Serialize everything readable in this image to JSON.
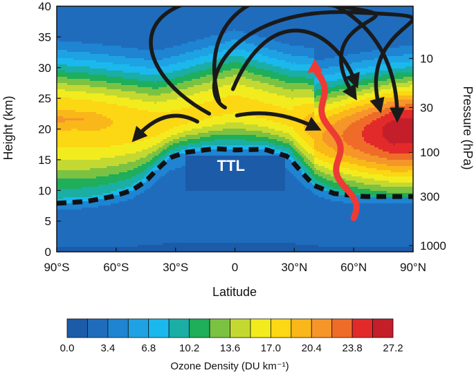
{
  "chart_data": {
    "type": "heatmap",
    "title": "",
    "xlabel": "Latitude",
    "ylabel": "Height (km)",
    "y2label": "Pressure (hPa)",
    "xlim": [
      -90,
      90
    ],
    "ylim": [
      0,
      40
    ],
    "x_ticks": [
      {
        "value": -90,
        "label": "90°S"
      },
      {
        "value": -60,
        "label": "60°S"
      },
      {
        "value": -30,
        "label": "30°S"
      },
      {
        "value": 0,
        "label": "0"
      },
      {
        "value": 30,
        "label": "30°N"
      },
      {
        "value": 60,
        "label": "60°N"
      },
      {
        "value": 90,
        "label": "90°N"
      }
    ],
    "y_ticks": [
      {
        "value": 0,
        "label": "0"
      },
      {
        "value": 5,
        "label": "5"
      },
      {
        "value": 10,
        "label": "10"
      },
      {
        "value": 15,
        "label": "15"
      },
      {
        "value": 20,
        "label": "20"
      },
      {
        "value": 25,
        "label": "25"
      },
      {
        "value": 30,
        "label": "30"
      },
      {
        "value": 35,
        "label": "35"
      },
      {
        "value": 40,
        "label": "40"
      }
    ],
    "y2_ticks": [
      {
        "height_km": 1.0,
        "label": "1000"
      },
      {
        "height_km": 9.0,
        "label": "300"
      },
      {
        "height_km": 16.2,
        "label": "100"
      },
      {
        "height_km": 23.5,
        "label": "30"
      },
      {
        "height_km": 31.5,
        "label": "10"
      }
    ],
    "colorbar": {
      "label": "Ozone Density (DU km⁻¹)",
      "min": 0.0,
      "max": 27.2,
      "step": 1.7,
      "tick_labels": [
        "0.0",
        "3.4",
        "6.8",
        "10.2",
        "13.6",
        "17.0",
        "20.4",
        "23.8",
        "27.2"
      ],
      "colors": [
        "#1c5ba8",
        "#1f6cbd",
        "#1f84d1",
        "#1fa2e3",
        "#1bb8ed",
        "#1aaea5",
        "#1fae59",
        "#7cc242",
        "#c3d931",
        "#f2ec1f",
        "#fcd713",
        "#f9b71a",
        "#f5952a",
        "#ee6c27",
        "#e32a2a",
        "#c41e2b"
      ]
    },
    "annotation": "TTL",
    "tropopause_km": [
      {
        "lat": -90,
        "z": 7.9
      },
      {
        "lat": -75,
        "z": 8.2
      },
      {
        "lat": -62,
        "z": 9.0
      },
      {
        "lat": -52,
        "z": 10.0
      },
      {
        "lat": -45,
        "z": 11.5
      },
      {
        "lat": -40,
        "z": 13.2
      },
      {
        "lat": -33,
        "z": 15.3
      },
      {
        "lat": -25,
        "z": 16.2
      },
      {
        "lat": -10,
        "z": 16.8
      },
      {
        "lat": 0,
        "z": 16.6
      },
      {
        "lat": 15,
        "z": 16.7
      },
      {
        "lat": 27,
        "z": 15.5
      },
      {
        "lat": 33,
        "z": 13.2
      },
      {
        "lat": 40,
        "z": 10.8
      },
      {
        "lat": 50,
        "z": 9.5
      },
      {
        "lat": 65,
        "z": 9.0
      },
      {
        "lat": 90,
        "z": 9.0
      }
    ],
    "circulation_arrows": [
      {
        "from": [
          -13,
          22.5
        ],
        "via": [
          [
            -56,
            30
          ],
          [
            -60,
            45
          ],
          [
            30,
            41
          ]
        ],
        "to": [
          60,
          25.5
        ]
      },
      {
        "from": [
          -5,
          23.5
        ],
        "via": [
          [
            -20,
            26
          ],
          [
            -6,
            40
          ],
          [
            60,
            39
          ]
        ],
        "to": [
          73,
          23.5
        ]
      },
      {
        "from": [
          -8,
          24.5
        ],
        "via": [
          [
            -28,
            48
          ],
          [
            82,
            48
          ]
        ],
        "to": [
          82,
          22
        ]
      },
      {
        "from": [
          -1,
          26.5
        ],
        "via": [
          [
            18,
            41
          ],
          [
            50,
            37
          ]
        ],
        "to": [
          61,
          27.5
        ]
      },
      {
        "from": [
          -19,
          21.2
        ],
        "via": [
          [
            -35,
            24
          ]
        ],
        "to": [
          -50,
          18.6
        ]
      },
      {
        "from": [
          1,
          22.2
        ],
        "via": [
          [
            20,
            23.5
          ]
        ],
        "to": [
          41,
          20.2
        ]
      }
    ],
    "wave_source": {
      "from": [
        60,
        5.5
      ],
      "to": [
        40,
        30.5
      ]
    }
  }
}
